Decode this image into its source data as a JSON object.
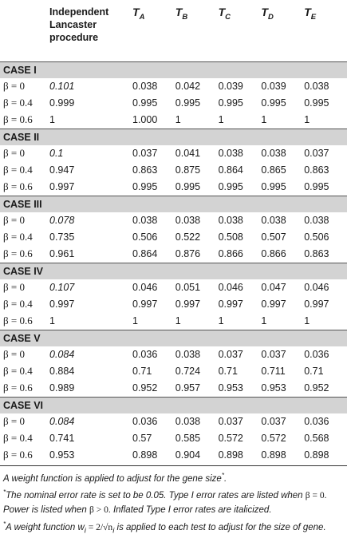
{
  "header": {
    "row_label": "",
    "col1": "Independent Lancaster procedure",
    "tests": [
      {
        "letter": "T",
        "sub": "A"
      },
      {
        "letter": "T",
        "sub": "B"
      },
      {
        "letter": "T",
        "sub": "C"
      },
      {
        "letter": "T",
        "sub": "D"
      },
      {
        "letter": "T",
        "sub": "E"
      }
    ]
  },
  "cases": [
    {
      "name": "CASE I",
      "rows": [
        {
          "label": "β = 0",
          "ilp": "0.101",
          "ilp_italic": true,
          "values": [
            "0.038",
            "0.042",
            "0.039",
            "0.039",
            "0.038"
          ]
        },
        {
          "label": "β = 0.4",
          "ilp": "0.999",
          "ilp_italic": false,
          "values": [
            "0.995",
            "0.995",
            "0.995",
            "0.995",
            "0.995"
          ]
        },
        {
          "label": "β = 0.6",
          "ilp": "1",
          "ilp_italic": false,
          "values": [
            "1.000",
            "1",
            "1",
            "1",
            "1"
          ]
        }
      ]
    },
    {
      "name": "CASE II",
      "rows": [
        {
          "label": "β = 0",
          "ilp": "0.1",
          "ilp_italic": true,
          "values": [
            "0.037",
            "0.041",
            "0.038",
            "0.038",
            "0.037"
          ]
        },
        {
          "label": "β = 0.4",
          "ilp": "0.947",
          "ilp_italic": false,
          "values": [
            "0.863",
            "0.875",
            "0.864",
            "0.865",
            "0.863"
          ]
        },
        {
          "label": "β = 0.6",
          "ilp": "0.997",
          "ilp_italic": false,
          "values": [
            "0.995",
            "0.995",
            "0.995",
            "0.995",
            "0.995"
          ]
        }
      ]
    },
    {
      "name": "CASE III",
      "rows": [
        {
          "label": "β = 0",
          "ilp": "0.078",
          "ilp_italic": true,
          "values": [
            "0.038",
            "0.038",
            "0.038",
            "0.038",
            "0.038"
          ]
        },
        {
          "label": "β = 0.4",
          "ilp": "0.735",
          "ilp_italic": false,
          "values": [
            "0.506",
            "0.522",
            "0.508",
            "0.507",
            "0.506"
          ]
        },
        {
          "label": "β = 0.6",
          "ilp": "0.961",
          "ilp_italic": false,
          "values": [
            "0.864",
            "0.876",
            "0.866",
            "0.866",
            "0.863"
          ]
        }
      ]
    },
    {
      "name": "CASE IV",
      "rows": [
        {
          "label": "β = 0",
          "ilp": "0.107",
          "ilp_italic": true,
          "values": [
            "0.046",
            "0.051",
            "0.046",
            "0.047",
            "0.046"
          ]
        },
        {
          "label": "β = 0.4",
          "ilp": "0.997",
          "ilp_italic": false,
          "values": [
            "0.997",
            "0.997",
            "0.997",
            "0.997",
            "0.997"
          ]
        },
        {
          "label": "β = 0.6",
          "ilp": "1",
          "ilp_italic": false,
          "values": [
            "1",
            "1",
            "1",
            "1",
            "1"
          ]
        }
      ]
    },
    {
      "name": "CASE V",
      "rows": [
        {
          "label": "β = 0",
          "ilp": "0.084",
          "ilp_italic": true,
          "values": [
            "0.036",
            "0.038",
            "0.037",
            "0.037",
            "0.036"
          ]
        },
        {
          "label": "β = 0.4",
          "ilp": "0.884",
          "ilp_italic": false,
          "values": [
            "0.71",
            "0.724",
            "0.71",
            "0.711",
            "0.71"
          ]
        },
        {
          "label": "β = 0.6",
          "ilp": "0.989",
          "ilp_italic": false,
          "values": [
            "0.952",
            "0.957",
            "0.953",
            "0.953",
            "0.952"
          ]
        }
      ]
    },
    {
      "name": "CASE VI",
      "rows": [
        {
          "label": "β = 0",
          "ilp": "0.084",
          "ilp_italic": true,
          "values": [
            "0.036",
            "0.038",
            "0.037",
            "0.037",
            "0.036"
          ]
        },
        {
          "label": "β = 0.4",
          "ilp": "0.741",
          "ilp_italic": false,
          "values": [
            "0.57",
            "0.585",
            "0.572",
            "0.572",
            "0.568"
          ]
        },
        {
          "label": "β = 0.6",
          "ilp": "0.953",
          "ilp_italic": false,
          "values": [
            "0.898",
            "0.904",
            "0.898",
            "0.898",
            "0.898"
          ]
        }
      ]
    }
  ],
  "notes": {
    "line1": "A weight function is applied to adjust for the gene size",
    "line1_mark": "*",
    "line2_mark": "*",
    "line2a": "The nominal error rate is set to be 0.05. Type I error rates are listed when",
    "line2_beta0": "β = 0.",
    "line2b": "Power is listed when",
    "line2_betagt": "β > 0.",
    "line2c": "Inflated Type I error rates are italicized.",
    "line3_mark": "*",
    "line3a": "A weight function",
    "line3_formula": "w",
    "line3_formula_sub": "i",
    "line3_formula_rest": " = 2/√n",
    "line3_formula_sub2": "i",
    "line3b": "is applied to each test to adjust for the size of gene."
  }
}
